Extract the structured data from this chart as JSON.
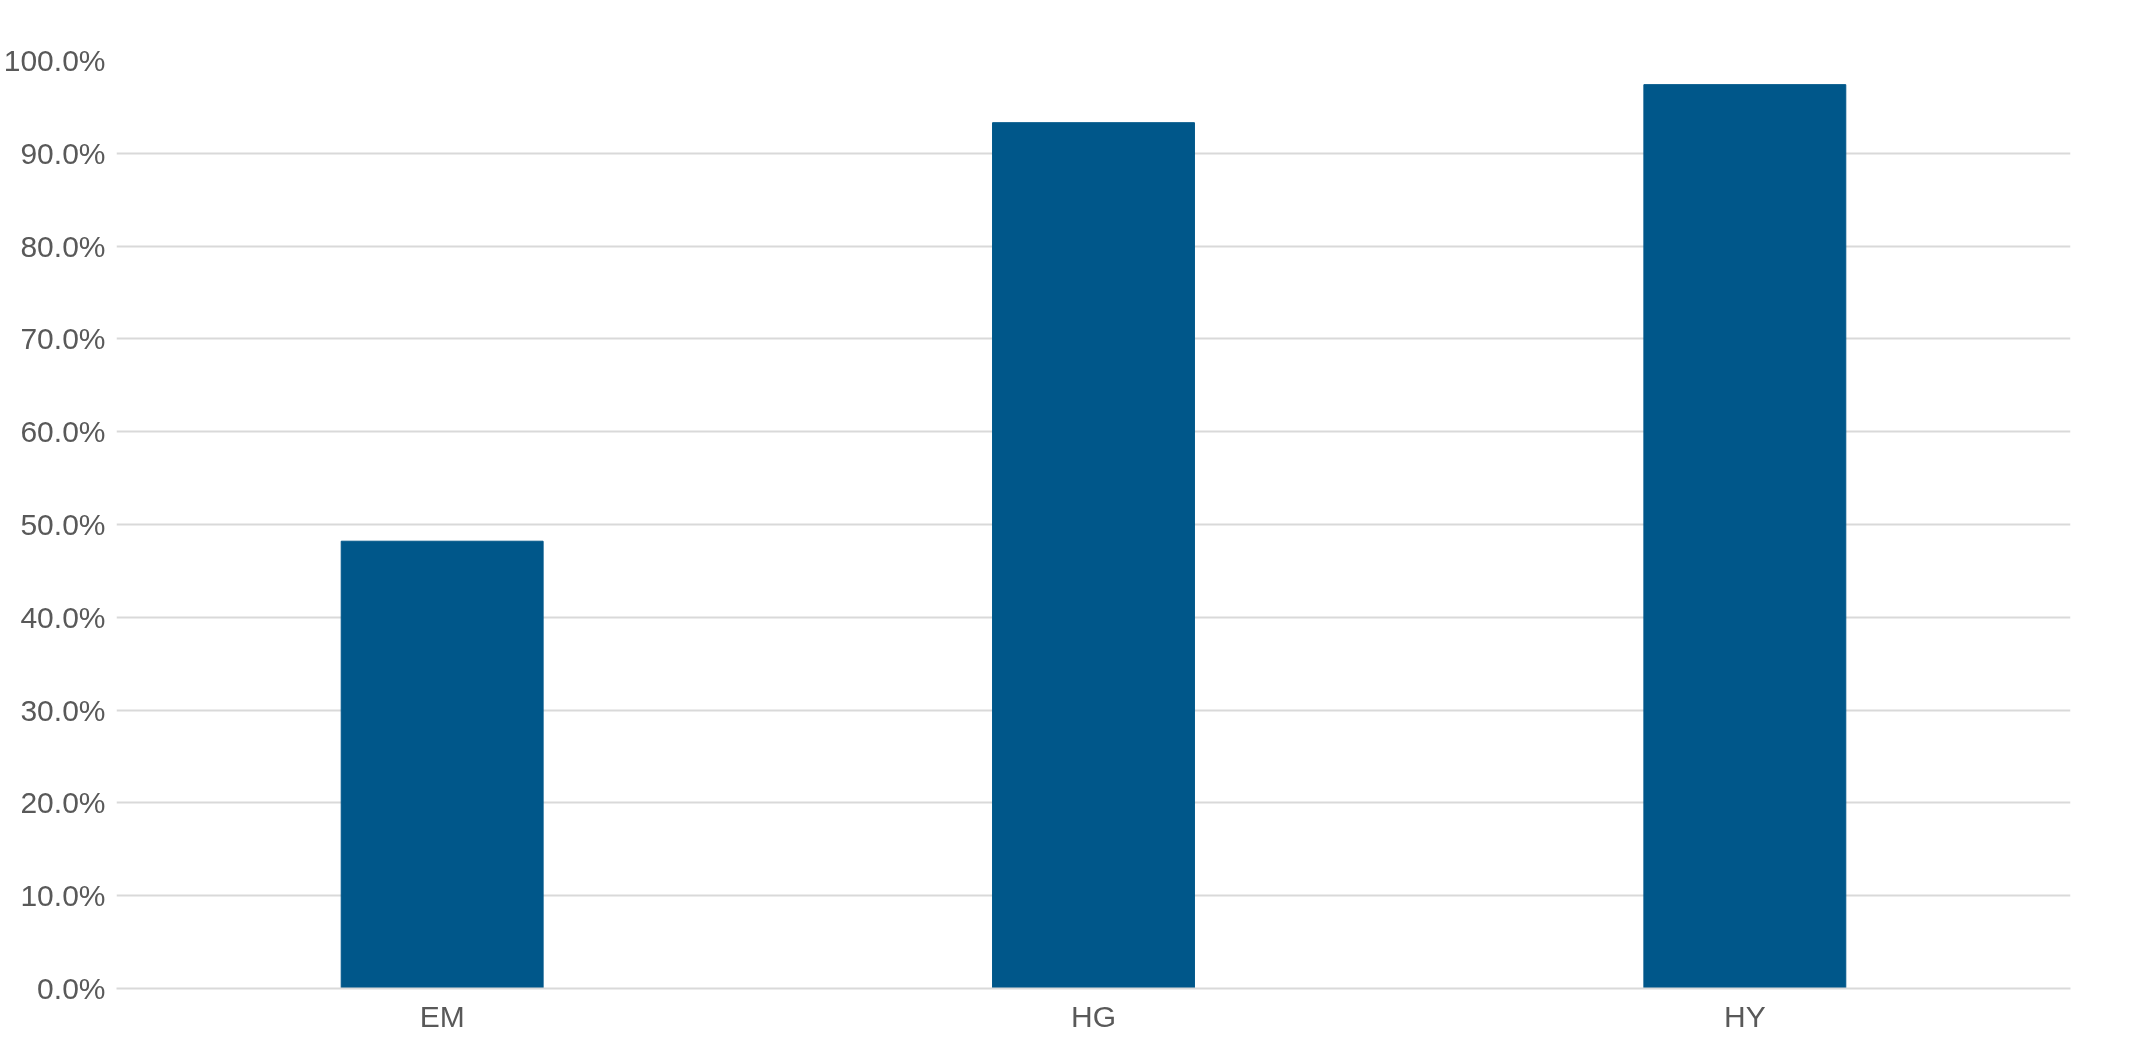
{
  "chart_data": {
    "type": "bar",
    "categories": [
      "EM",
      "HG",
      "HY"
    ],
    "values": [
      48.2,
      93.3,
      97.4
    ],
    "color": "#00578a",
    "ylim": [
      0,
      100
    ],
    "yticks": [
      {
        "value": 0,
        "label": "0.0%"
      },
      {
        "value": 10,
        "label": "10.0%"
      },
      {
        "value": 20,
        "label": "20.0%"
      },
      {
        "value": 30,
        "label": "30.0%"
      },
      {
        "value": 40,
        "label": "40.0%"
      },
      {
        "value": 50,
        "label": "50.0%"
      },
      {
        "value": 60,
        "label": "60.0%"
      },
      {
        "value": 70,
        "label": "70.0%"
      },
      {
        "value": 80,
        "label": "80.0%"
      },
      {
        "value": 90,
        "label": "90.0%"
      },
      {
        "value": 100,
        "label": "100.0%"
      }
    ],
    "grid": "y"
  }
}
